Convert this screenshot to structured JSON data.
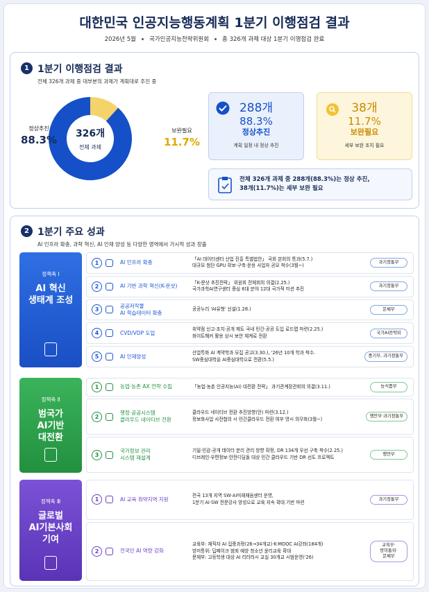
{
  "header": {
    "title": "대한민국 인공지능행동계획 1분기 이행점검 결과",
    "meta": [
      "2026년 5월",
      "국가인공지능전략위원회",
      "총 326개 과제 대상 1분기 이행점검 완료"
    ]
  },
  "section1": {
    "no": "1",
    "title": "1분기 이행점검 결과",
    "desc": "전체 326개 과제 중 대부분의 과제가 계획대로 추진 중",
    "donut": {
      "center_value": "326개",
      "center_label": "전체 과제",
      "segments": [
        {
          "name": "정상추진",
          "value": 88.3,
          "value_label": "88.3%",
          "color": "#1550c8"
        },
        {
          "name": "보완필요",
          "value": 11.7,
          "value_label": "11.7%",
          "color": "#f5d36b"
        }
      ]
    },
    "cards": [
      {
        "count": "288개",
        "pct": "88.3%",
        "label": "정상추진",
        "note": "계획 일정 내 정상 추진"
      },
      {
        "count": "38개",
        "pct": "11.7%",
        "label": "보완필요",
        "note": "세부 보완 조치 필요"
      }
    ],
    "summary": [
      "전체 326개 과제 중 288개(88.3%)는 정상 추진,",
      "38개(11.7%)는 세부 보완 필요"
    ]
  },
  "section2": {
    "no": "2",
    "title": "1분기 주요 성과",
    "desc": "AI 인프라 확충, 과학 혁신, AI 인재 양성 등 다양한 영역에서 가시적 성과 창출",
    "pillars": [
      {
        "label": "정책축 Ⅰ",
        "title": [
          "AI 혁신",
          "생태계 조성"
        ],
        "items": [
          {
            "no": "1",
            "title": [
              "AI 인프라 확충"
            ],
            "desc": [
              "「AI 데이터센터 산업 진흥 특별법안」 국회 본회의 통과(5.7.)",
              "대규모 첨단 GPU 확보·구축·운용 사업자 공모 착수(3월~)"
            ],
            "org": [
              "과기정통부"
            ]
          },
          {
            "no": "2",
            "title": [
              "AI 기반 과학 혁신(K-문샷)"
            ],
            "desc": [
              "「K-문샷 추진전략」 위원회 전체회의 의결(2.25.)",
              "국가과학AI연구센터 중심 6대 분야 12대 국가적 미션 추진"
            ],
            "org": [
              "과기정통부"
            ]
          },
          {
            "no": "3",
            "title": [
              "공공저작물",
              "AI 학습데이터 확충"
            ],
            "desc": [
              "공공누리 'AI유형' 신설(1.28.)"
            ],
            "org": [
              "문체부"
            ]
          },
          {
            "no": "4",
            "title": [
              "CVD/VDP 도입"
            ],
            "desc": [
              "취약점 신고·조치·공개 제도 국내 민간·공공 도입 로드맵 마련(2.25.)",
              "화이트해커 활용 상시 보안 체계로 전환"
            ],
            "org": [
              "국가AI전략위"
            ]
          },
          {
            "no": "5",
            "title": [
              "AI 인재양성"
            ],
            "desc": [
              "산업특화 AI 계약학과 모집 공고(3.30.), '26년 10개 학과 착수.",
              "SW중심대학을 AI중심대학으로 전환(5.5.)"
            ],
            "org": [
              "중기부, 과기정통부"
            ]
          }
        ]
      },
      {
        "label": "정책축 Ⅱ",
        "title": [
          "범국가",
          "AI기반",
          "대전환"
        ],
        "items": [
          {
            "no": "1",
            "title": [
              "농업·농촌 AX 전략 수립"
            ],
            "desc": [
              "「농업·농촌 인공지능(AI) 대전환 전략」 과기관계장관회의 의결(3.11.)"
            ],
            "org": [
              "농식품부"
            ]
          },
          {
            "no": "2",
            "title": [
              "행정·공공시스템",
              "클라우드 네이티브 전환"
            ],
            "desc": [
              "클라우드 네이티브 전환 추진방향(안) 마련(3.12.)",
              "정보화사업 사전협의 시 민간클라우드 전환 여부 명시 의무화(3월~)"
            ],
            "org": [
              "행안부·과기정통부"
            ]
          },
          {
            "no": "3",
            "title": [
              "국가정보 관리",
              "시스템 재설계"
            ],
            "desc": [
              "기밀·민감·공개 데이터 분리 관리 방향 확정, DR 134개 우선 구축 착수(2.25.)",
              "디브레인·우편정보·안전디딤돌 대상 민간 클라우드 기반 DR 선도 프로젝트"
            ],
            "org": [
              "행안부"
            ]
          }
        ]
      },
      {
        "label": "정책축 Ⅲ",
        "title": [
          "글로벌",
          "AI기본사회",
          "기여"
        ],
        "items": [
          {
            "no": "1",
            "title": [
              "AI 교육 취약지역 지원"
            ],
            "desc": [
              "전국 13개 지역 SW·AI미래채움센터 운영,",
              "1분기 AI·SW 전문강사 양성으로 교육 지속 확대 기반 마련"
            ],
            "org": [
              "과기정통부"
            ]
          },
          {
            "no": "2",
            "title": [
              "전국민 AI 역량 강화"
            ],
            "desc": [
              "교육부: 재직자 AI 집중과정(26→34개교)·K-MOOC AI강좌(184개)",
              "방미통위: 딥페이크 범죄 예방 청소년 윤리교육 확대",
              "문체부: 고등학생 대상 AI 리터러시 교실 30개교 시범운영('26)"
            ],
            "org": [
              "교육부·",
              "방미통위·",
              "문체부"
            ]
          }
        ]
      }
    ]
  }
}
